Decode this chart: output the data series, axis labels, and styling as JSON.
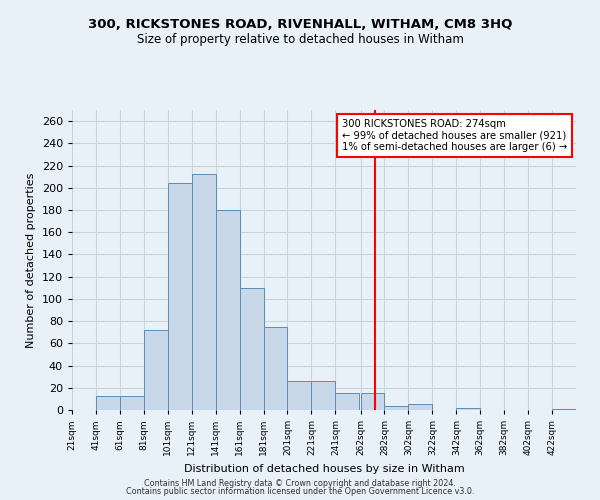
{
  "title": "300, RICKSTONES ROAD, RIVENHALL, WITHAM, CM8 3HQ",
  "subtitle": "Size of property relative to detached houses in Witham",
  "xlabel": "Distribution of detached houses by size in Witham",
  "ylabel": "Number of detached properties",
  "bin_labels": [
    "21sqm",
    "41sqm",
    "61sqm",
    "81sqm",
    "101sqm",
    "121sqm",
    "141sqm",
    "161sqm",
    "181sqm",
    "201sqm",
    "221sqm",
    "241sqm",
    "262sqm",
    "282sqm",
    "302sqm",
    "322sqm",
    "342sqm",
    "362sqm",
    "382sqm",
    "402sqm",
    "422sqm"
  ],
  "bin_edges": [
    21,
    41,
    61,
    81,
    101,
    121,
    141,
    161,
    181,
    201,
    221,
    241,
    262,
    282,
    302,
    322,
    342,
    362,
    382,
    402,
    422
  ],
  "bar_heights": [
    0,
    13,
    13,
    72,
    204,
    212,
    180,
    110,
    75,
    26,
    26,
    15,
    15,
    4,
    5,
    0,
    2,
    0,
    0,
    0,
    1
  ],
  "bar_color": "#c8d8e8",
  "bar_edge_color": "#5b8db8",
  "vline_x": 274,
  "vline_color": "red",
  "annotation_title": "300 RICKSTONES ROAD: 274sqm",
  "annotation_line1": "← 99% of detached houses are smaller (921)",
  "annotation_line2": "1% of semi-detached houses are larger (6) →",
  "annotation_box_color": "white",
  "annotation_box_edge": "red",
  "footer1": "Contains HM Land Registry data © Crown copyright and database right 2024.",
  "footer2": "Contains public sector information licensed under the Open Government Licence v3.0.",
  "ylim": [
    0,
    270
  ],
  "yticks": [
    0,
    20,
    40,
    60,
    80,
    100,
    120,
    140,
    160,
    180,
    200,
    220,
    240,
    260
  ],
  "background_color": "#e8f0f8",
  "grid_color": "#c8d4dc"
}
